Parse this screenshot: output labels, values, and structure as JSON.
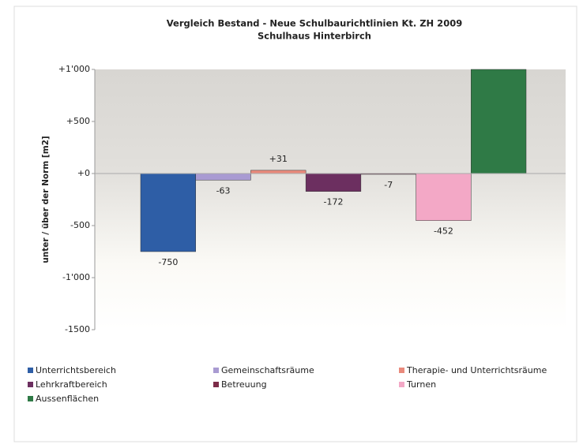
{
  "chart_data": {
    "type": "bar",
    "title": "Vergleich Bestand - Neue Schulbaurichtlinien Kt. ZH 2009",
    "subtitle": "Schulhaus Hinterbirch",
    "y_label": "unter  /  über der Norm [m2]",
    "categories": [
      "Unterrichtsbereich",
      "Gemeinschaftsräume",
      "Therapie- und Unterrichtsräume",
      "Lehrkraftbereich",
      "Betreuung",
      "Turnen",
      "Aussenflächen"
    ],
    "values": [
      -750,
      -63,
      31,
      -172,
      -7,
      -452,
      1000
    ],
    "value_labels": [
      "-750",
      "-63",
      "+31",
      "-172",
      "-7",
      "-452",
      null
    ],
    "colors": [
      "#2e5ea6",
      "#a99bd2",
      "#e98a7c",
      "#6c2f60",
      "#7c2c48",
      "#f3a8c6",
      "#2f7a46"
    ],
    "ylim": [
      -1500,
      1000
    ],
    "yticks": [
      {
        "value": 1000,
        "label": "+1'000"
      },
      {
        "value": 500,
        "label": "+500"
      },
      {
        "value": 0,
        "label": "+0"
      },
      -500,
      {
        "value": -1000,
        "label": "-1'000"
      },
      -1500
    ],
    "legend": "bottom"
  }
}
